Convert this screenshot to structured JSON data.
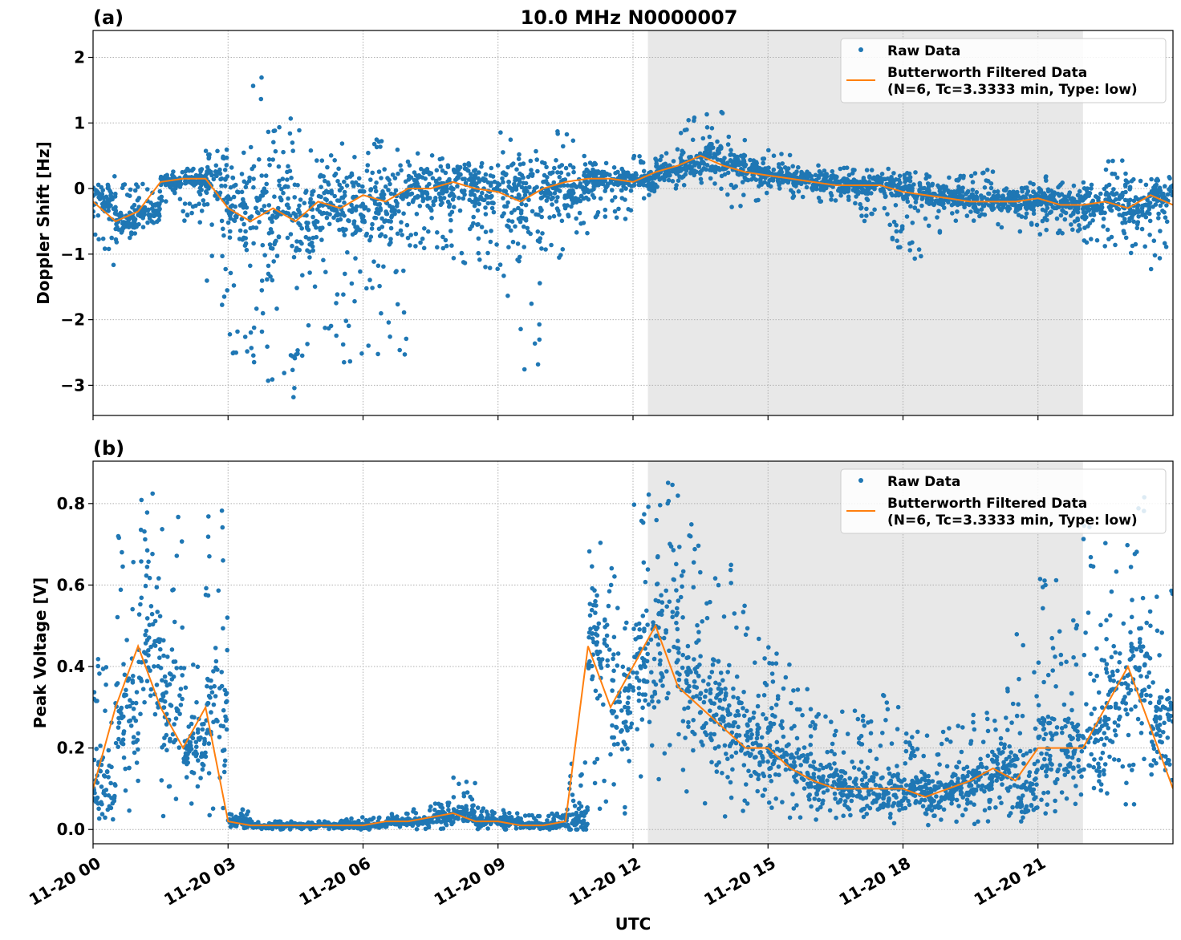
{
  "title": "10.0 MHz N0000007",
  "xlabel": "UTC",
  "x_tick_labels": [
    "11-20 00",
    "11-20 03",
    "11-20 06",
    "11-20 09",
    "11-20 12",
    "11-20 15",
    "11-20 18",
    "11-20 21"
  ],
  "x_tick_hours": [
    0,
    3,
    6,
    9,
    12,
    15,
    18,
    21
  ],
  "x_range_hours": [
    0,
    24
  ],
  "shaded_region_hours": [
    12.33,
    22.0
  ],
  "colors": {
    "raw": "#1f77b4",
    "filtered": "#ff7f0e",
    "shade": "#e8e8e8",
    "grid": "#b0b0b0"
  },
  "legend": {
    "raw": "Raw Data",
    "filtered_line1": "Butterworth Filtered Data",
    "filtered_line2": "(N=6, Tc=3.3333 min, Type: low)",
    "placement": "upper-right"
  },
  "chart_data": [
    {
      "type": "scatter+line",
      "panel_label": "(a)",
      "ylabel": "Doppler Shift [Hz]",
      "ylim": [
        -3.46,
        2.41
      ],
      "y_ticks": [
        2,
        1,
        0,
        -1,
        -2,
        -3
      ],
      "y_tick_labels": [
        "2",
        "1",
        "0",
        "−1",
        "−2",
        "−3"
      ],
      "grid": true,
      "x_hours": [
        0,
        0.5,
        1,
        1.5,
        2,
        2.5,
        3,
        3.5,
        4,
        4.5,
        5,
        5.5,
        6,
        6.5,
        7,
        7.5,
        8,
        8.5,
        9,
        9.5,
        10,
        10.5,
        11,
        11.5,
        12,
        12.5,
        13,
        13.5,
        14,
        14.5,
        15,
        15.5,
        16,
        16.5,
        17,
        17.5,
        18,
        18.5,
        19,
        19.5,
        20,
        20.5,
        21,
        21.5,
        22,
        22.5,
        23,
        23.5,
        24
      ],
      "filtered": [
        -0.2,
        -0.5,
        -0.35,
        0.1,
        0.15,
        0.15,
        -0.3,
        -0.5,
        -0.3,
        -0.5,
        -0.2,
        -0.3,
        -0.1,
        -0.2,
        0,
        0,
        0.1,
        0,
        -0.05,
        -0.2,
        0,
        0.1,
        0.15,
        0.15,
        0.1,
        0.25,
        0.35,
        0.5,
        0.35,
        0.25,
        0.2,
        0.15,
        0.1,
        0.05,
        0.05,
        0.05,
        -0.05,
        -0.1,
        -0.15,
        -0.2,
        -0.2,
        -0.2,
        -0.15,
        -0.25,
        -0.25,
        -0.2,
        -0.3,
        -0.1,
        -0.25
      ],
      "raw_min": [
        -1.2,
        -0.9,
        -0.6,
        -0.2,
        -0.1,
        -1.0,
        -2.8,
        -2.7,
        -3.2,
        -2.7,
        -2.2,
        -2.8,
        -2.6,
        -2.6,
        -1.2,
        -0.9,
        -1.0,
        -1.3,
        -1.1,
        -2.8,
        -1.2,
        -0.8,
        -0.4,
        -0.5,
        -0.2,
        0.0,
        0.1,
        0.0,
        -0.3,
        -0.2,
        -0.1,
        -0.1,
        -0.2,
        -0.2,
        -0.3,
        -0.7,
        -1.1,
        -0.7,
        -0.6,
        -0.6,
        -0.6,
        -0.7,
        -0.7,
        -0.6,
        -0.9,
        -0.9,
        -0.7,
        -1.3,
        -1.3
      ],
      "raw_max": [
        0.2,
        0.1,
        0.1,
        0.3,
        0.3,
        0.6,
        0.6,
        1.8,
        1.1,
        0.9,
        0.6,
        0.7,
        0.9,
        0.6,
        0.6,
        0.6,
        0.5,
        0.6,
        0.9,
        0.6,
        0.9,
        0.9,
        0.4,
        0.4,
        0.5,
        0.6,
        1.1,
        1.2,
        0.8,
        0.6,
        0.6,
        0.4,
        0.5,
        0.4,
        0.3,
        0.3,
        0.3,
        0.3,
        0.2,
        0.3,
        0.1,
        0.2,
        0.2,
        0.1,
        0.1,
        0.45,
        0.3,
        0.2,
        0.1
      ]
    },
    {
      "type": "scatter+line",
      "panel_label": "(b)",
      "ylabel": "Peak Voltage [V]",
      "ylim": [
        -0.035,
        0.904
      ],
      "y_ticks": [
        0.0,
        0.2,
        0.4,
        0.6,
        0.8
      ],
      "y_tick_labels": [
        "0.0",
        "0.2",
        "0.4",
        "0.6",
        "0.8"
      ],
      "grid": true,
      "x_hours": [
        0,
        0.5,
        1,
        1.5,
        2,
        2.5,
        3,
        3.5,
        4,
        4.5,
        5,
        5.5,
        6,
        6.5,
        7,
        7.5,
        8,
        8.5,
        9,
        9.5,
        10,
        10.5,
        11,
        11.5,
        12,
        12.5,
        13,
        13.5,
        14,
        14.5,
        15,
        15.5,
        16,
        16.5,
        17,
        17.5,
        18,
        18.5,
        19,
        19.5,
        20,
        20.5,
        21,
        21.5,
        22,
        22.5,
        23,
        23.5,
        24
      ],
      "filtered": [
        0.1,
        0.3,
        0.45,
        0.3,
        0.2,
        0.3,
        0.02,
        0.01,
        0.01,
        0.01,
        0.01,
        0.01,
        0.01,
        0.02,
        0.02,
        0.03,
        0.04,
        0.02,
        0.02,
        0.01,
        0.01,
        0.02,
        0.45,
        0.3,
        0.4,
        0.5,
        0.35,
        0.3,
        0.25,
        0.2,
        0.2,
        0.15,
        0.12,
        0.1,
        0.1,
        0.1,
        0.1,
        0.08,
        0.1,
        0.12,
        0.15,
        0.12,
        0.2,
        0.2,
        0.2,
        0.3,
        0.4,
        0.25,
        0.1
      ],
      "raw_min": [
        0.02,
        0.05,
        0.02,
        0.03,
        0.05,
        0.05,
        0,
        0,
        0,
        0,
        0,
        0,
        0,
        0,
        0,
        0,
        0.01,
        0,
        0,
        0,
        0,
        0,
        0.05,
        0.02,
        0.02,
        0.02,
        0.03,
        0.03,
        0.03,
        0.03,
        0.02,
        0.02,
        0.02,
        0.02,
        0.01,
        0.01,
        0.01,
        0.01,
        0.01,
        0.01,
        0.01,
        0.02,
        0.03,
        0.04,
        0.05,
        0.06,
        0.07,
        0.05,
        0.02
      ],
      "raw_max": [
        0.45,
        0.72,
        0.86,
        0.8,
        0.5,
        0.82,
        0.05,
        0.02,
        0.02,
        0.02,
        0.02,
        0.03,
        0.03,
        0.04,
        0.05,
        0.08,
        0.13,
        0.06,
        0.06,
        0.04,
        0.04,
        0.2,
        0.73,
        0.7,
        0.83,
        0.86,
        0.86,
        0.7,
        0.66,
        0.5,
        0.45,
        0.35,
        0.32,
        0.3,
        0.3,
        0.33,
        0.25,
        0.25,
        0.32,
        0.3,
        0.35,
        0.5,
        0.62,
        0.6,
        0.75,
        0.7,
        0.83,
        0.6,
        0.3
      ]
    }
  ]
}
